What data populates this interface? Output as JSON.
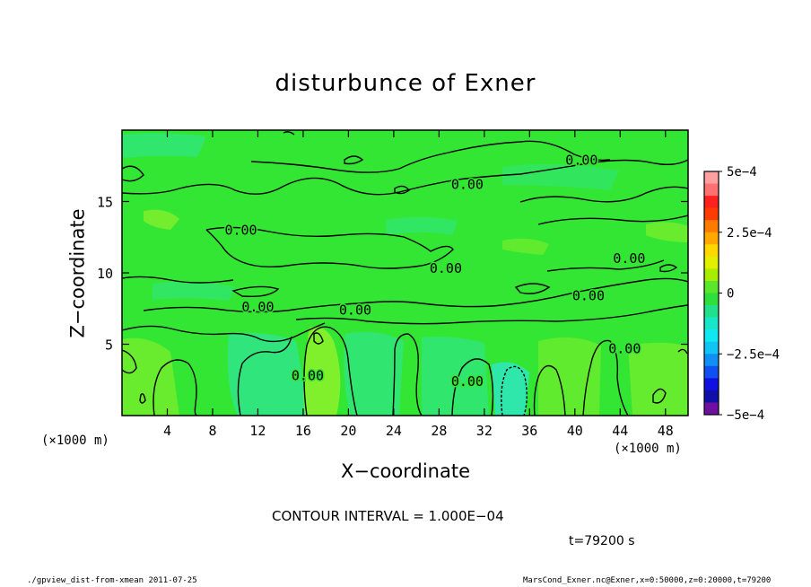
{
  "title": "disturbunce of Exner",
  "xlabel": "X−coordinate",
  "ylabel": "Z−coordinate",
  "x_unit_left": "(×1000 m)",
  "x_unit_right": "(×1000 m)",
  "contour_interval": "CONTOUR INTERVAL = 1.000E−04",
  "time_label": "t=79200 s",
  "footer_left": "./gpview_dist-from-xmean  2011-07-25",
  "footer_right": "MarsCond_Exner.nc@Exner,x=0:50000,z=0:20000,t=79200",
  "colors": {
    "field_main": "#33e633",
    "field_low": "#2fe69b",
    "field_high": "#8ef02c",
    "contour": "#000000"
  },
  "chart_data": {
    "type": "contour",
    "x_range": [
      0,
      50
    ],
    "y_range": [
      0,
      20
    ],
    "x_ticks": [
      4,
      8,
      12,
      16,
      20,
      24,
      28,
      32,
      36,
      40,
      44,
      48
    ],
    "y_ticks": [
      5,
      10,
      15
    ],
    "contour_labels": [
      {
        "text": "0.00",
        "x": 40.6,
        "y": 17.9
      },
      {
        "text": "0.00",
        "x": 30.5,
        "y": 16.2
      },
      {
        "text": "0.00",
        "x": 10.5,
        "y": 13.0
      },
      {
        "text": "0.00",
        "x": 28.6,
        "y": 10.3
      },
      {
        "text": "0.00",
        "x": 44.8,
        "y": 11.0
      },
      {
        "text": "0.00",
        "x": 41.2,
        "y": 8.4
      },
      {
        "text": "0.00",
        "x": 12.0,
        "y": 7.6
      },
      {
        "text": "0.00",
        "x": 20.6,
        "y": 7.4
      },
      {
        "text": "0.00",
        "x": 16.4,
        "y": 2.8
      },
      {
        "text": "0.00",
        "x": 30.5,
        "y": 2.4
      },
      {
        "text": "0.00",
        "x": 44.4,
        "y": 4.7
      }
    ],
    "colorbar": {
      "min": -0.0005,
      "max": 0.0005,
      "tick_labels": [
        "5e−4",
        "2.5e−4",
        "0",
        "−2.5e−4",
        "−5e−4"
      ],
      "tick_values": [
        0.0005,
        0.00025,
        0,
        -0.00025,
        -0.0005
      ],
      "levels": [
        {
          "from": 0.00045,
          "to": 0.0005,
          "color": "#ffa0a0"
        },
        {
          "from": 0.0004,
          "to": 0.00045,
          "color": "#ff7070"
        },
        {
          "from": 0.00035,
          "to": 0.0004,
          "color": "#ff2020"
        },
        {
          "from": 0.0003,
          "to": 0.00035,
          "color": "#ff3c00"
        },
        {
          "from": 0.00025,
          "to": 0.0003,
          "color": "#ff7a00"
        },
        {
          "from": 0.0002,
          "to": 0.00025,
          "color": "#ffa800"
        },
        {
          "from": 0.00015,
          "to": 0.0002,
          "color": "#ffd800"
        },
        {
          "from": 0.0001,
          "to": 0.00015,
          "color": "#e2f000"
        },
        {
          "from": 5e-05,
          "to": 0.0001,
          "color": "#a8ec00"
        },
        {
          "from": 0,
          "to": 5e-05,
          "color": "#5ae62a"
        },
        {
          "from": -5e-05,
          "to": 0,
          "color": "#2fe03c"
        },
        {
          "from": -0.0001,
          "to": -5e-05,
          "color": "#20e08c"
        },
        {
          "from": -0.00015,
          "to": -0.0001,
          "color": "#18e6c8"
        },
        {
          "from": -0.0002,
          "to": -0.00015,
          "color": "#10e8f0"
        },
        {
          "from": -0.00025,
          "to": -0.0002,
          "color": "#10c4f4"
        },
        {
          "from": -0.0003,
          "to": -0.00025,
          "color": "#1090f4"
        },
        {
          "from": -0.00035,
          "to": -0.0003,
          "color": "#1050f0"
        },
        {
          "from": -0.0004,
          "to": -0.00035,
          "color": "#1010e0"
        },
        {
          "from": -0.00045,
          "to": -0.0004,
          "color": "#1010a8"
        },
        {
          "from": -0.0005,
          "to": -0.00045,
          "color": "#7010a0"
        }
      ]
    }
  }
}
